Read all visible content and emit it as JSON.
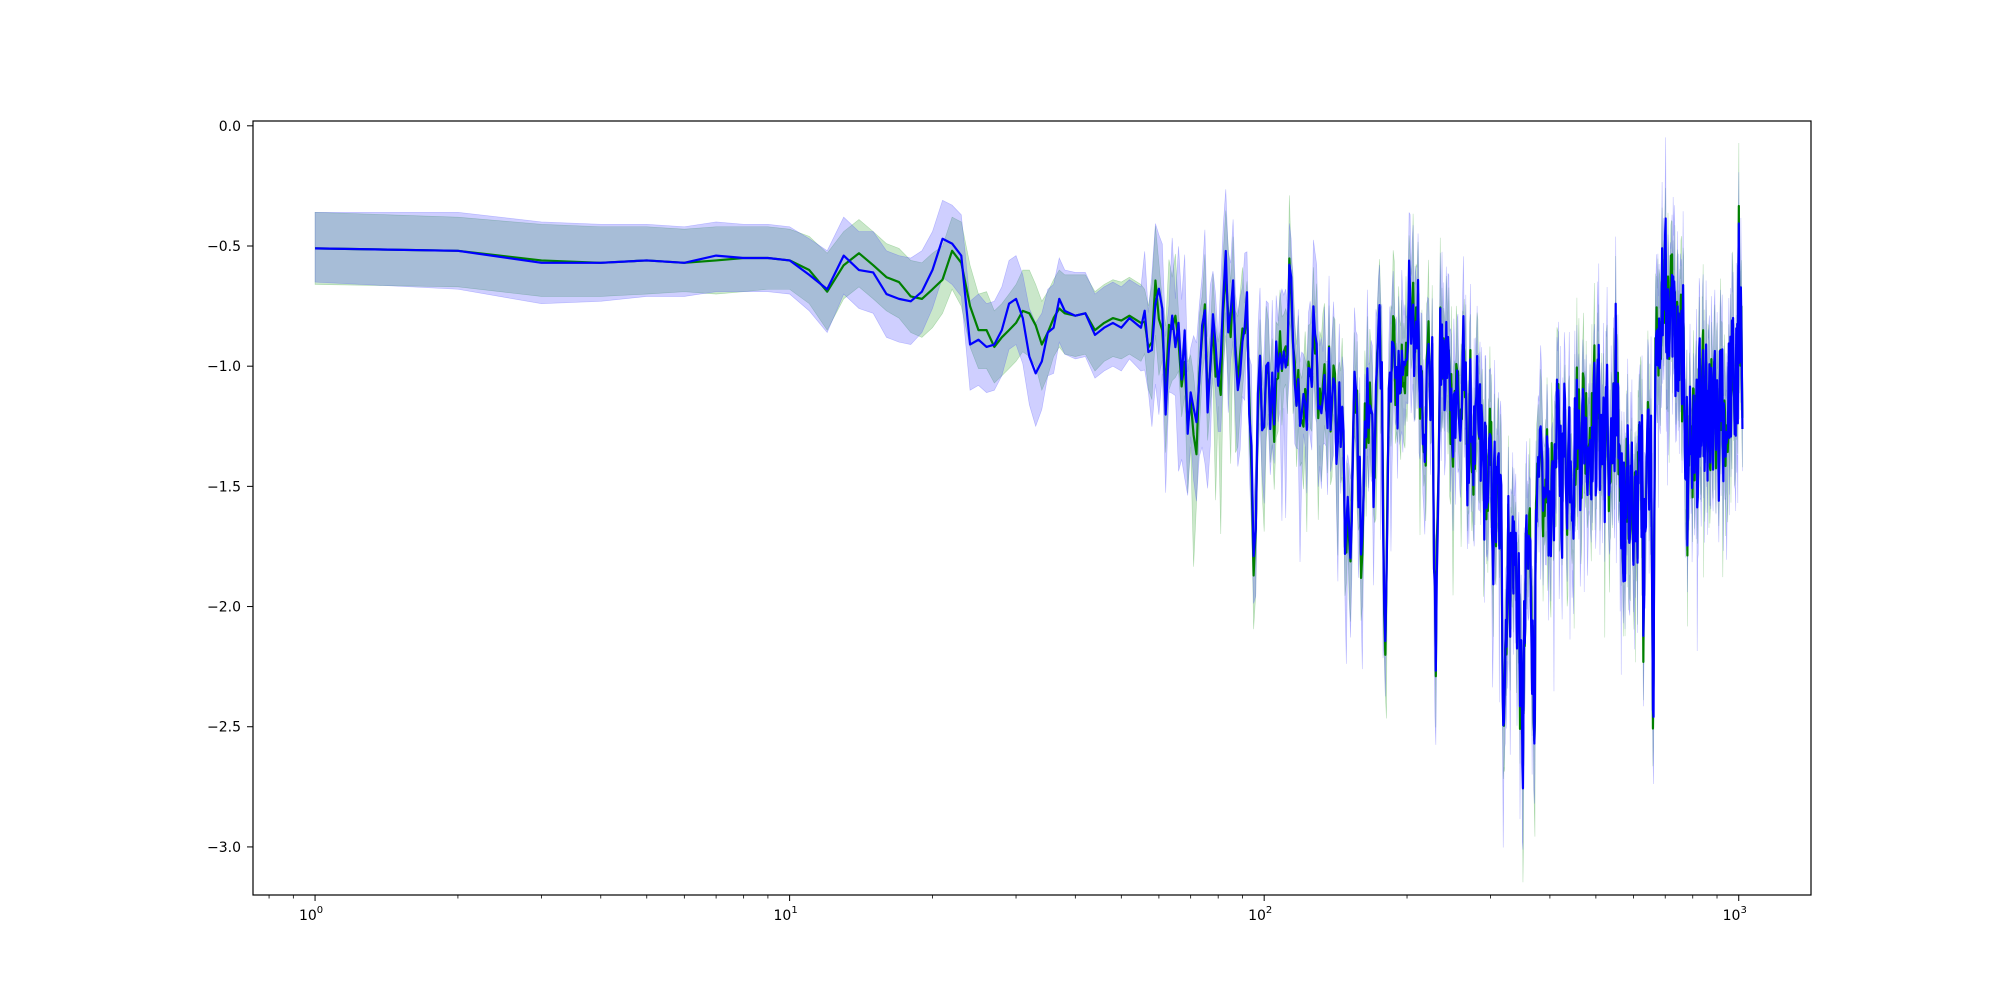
{
  "chart_data": {
    "type": "line",
    "title": "",
    "xlabel": "",
    "ylabel": "",
    "x_scale": "log",
    "xlim": [
      0.74,
      1420
    ],
    "ylim": [
      -3.2,
      0.02
    ],
    "grid": false,
    "legend": "none",
    "x_ticks": [
      {
        "value": 1,
        "base": "10",
        "exp": "0"
      },
      {
        "value": 10,
        "base": "10",
        "exp": "1"
      },
      {
        "value": 100,
        "base": "10",
        "exp": "2"
      },
      {
        "value": 1000,
        "base": "10",
        "exp": "3"
      }
    ],
    "y_ticks": [
      {
        "value": 0.0,
        "label": "0.0"
      },
      {
        "value": -0.5,
        "label": "−0.5"
      },
      {
        "value": -1.0,
        "label": "−1.0"
      },
      {
        "value": -1.5,
        "label": "−1.5"
      },
      {
        "value": -2.0,
        "label": "−2.0"
      },
      {
        "value": -2.5,
        "label": "−2.5"
      },
      {
        "value": -3.0,
        "label": "−3.0"
      }
    ],
    "series": [
      {
        "color": "#008000",
        "band_color": "#2ca02c",
        "band_opacity": 0.25,
        "points": [
          [
            1,
            -0.51,
            -0.36,
            -0.66
          ],
          [
            2,
            -0.52,
            -0.38,
            -0.67
          ],
          [
            3,
            -0.56,
            -0.41,
            -0.71
          ],
          [
            4,
            -0.57,
            -0.42,
            -0.71
          ],
          [
            5,
            -0.56,
            -0.42,
            -0.7
          ],
          [
            6,
            -0.57,
            -0.43,
            -0.69
          ],
          [
            7,
            -0.56,
            -0.42,
            -0.7
          ],
          [
            8,
            -0.55,
            -0.42,
            -0.69
          ],
          [
            9,
            -0.55,
            -0.42,
            -0.68
          ],
          [
            10,
            -0.56,
            -0.43,
            -0.68
          ],
          [
            11,
            -0.6,
            -0.46,
            -0.74
          ],
          [
            12,
            -0.69,
            -0.53,
            -0.85
          ],
          [
            13,
            -0.58,
            -0.44,
            -0.72
          ],
          [
            14,
            -0.53,
            -0.39,
            -0.67
          ],
          [
            15,
            -0.58,
            -0.44,
            -0.72
          ],
          [
            16,
            -0.63,
            -0.49,
            -0.77
          ],
          [
            17,
            -0.65,
            -0.51,
            -0.8
          ],
          [
            18,
            -0.71,
            -0.56,
            -0.86
          ],
          [
            19,
            -0.72,
            -0.57,
            -0.88
          ],
          [
            20,
            -0.68,
            -0.53,
            -0.84
          ],
          [
            21,
            -0.64,
            -0.5,
            -0.78
          ],
          [
            22,
            -0.52,
            -0.38,
            -0.68
          ],
          [
            23,
            -0.57,
            -0.4,
            -0.75
          ],
          [
            24,
            -0.75,
            -0.58,
            -0.92
          ],
          [
            25,
            -0.85,
            -0.7,
            -1.01
          ],
          [
            26,
            -0.85,
            -0.69,
            -1.01
          ],
          [
            27,
            -0.92,
            -0.77,
            -1.07
          ],
          [
            28,
            -0.88,
            -0.74,
            -1.04
          ],
          [
            29,
            -0.85,
            -0.7,
            -1.01
          ],
          [
            30,
            -0.82,
            -0.66,
            -0.98
          ],
          [
            31,
            -0.77,
            -0.6,
            -0.94
          ],
          [
            32,
            -0.78,
            -0.6,
            -0.96
          ],
          [
            33,
            -0.83,
            -0.66,
            -1.0
          ],
          [
            34,
            -0.91,
            -0.73,
            -1.1
          ],
          [
            35,
            -0.86,
            -0.69,
            -1.04
          ],
          [
            36,
            -0.8,
            -0.64,
            -0.96
          ],
          [
            37,
            -0.76,
            -0.6,
            -0.92
          ],
          [
            38,
            -0.78,
            -0.62,
            -0.95
          ],
          [
            40,
            -0.79,
            -0.62,
            -0.96
          ],
          [
            42,
            -0.78,
            -0.62,
            -0.95
          ],
          [
            44,
            -0.85,
            -0.69,
            -1.02
          ],
          [
            46,
            -0.82,
            -0.66,
            -0.98
          ],
          [
            48,
            -0.8,
            -0.64,
            -0.96
          ],
          [
            50,
            -0.81,
            -0.65,
            -0.97
          ],
          [
            52,
            -0.79,
            -0.63,
            -0.95
          ],
          [
            55,
            -0.82,
            -0.66,
            -0.98
          ]
        ]
      },
      {
        "color": "#0000ff",
        "band_color": "#4040ff",
        "band_opacity": 0.25,
        "points": [
          [
            1,
            -0.51,
            -0.36,
            -0.65
          ],
          [
            2,
            -0.52,
            -0.36,
            -0.68
          ],
          [
            3,
            -0.57,
            -0.4,
            -0.74
          ],
          [
            4,
            -0.57,
            -0.41,
            -0.73
          ],
          [
            5,
            -0.56,
            -0.41,
            -0.71
          ],
          [
            6,
            -0.57,
            -0.42,
            -0.71
          ],
          [
            7,
            -0.54,
            -0.4,
            -0.69
          ],
          [
            8,
            -0.55,
            -0.41,
            -0.69
          ],
          [
            9,
            -0.55,
            -0.41,
            -0.69
          ],
          [
            10,
            -0.56,
            -0.42,
            -0.7
          ],
          [
            11,
            -0.62,
            -0.47,
            -0.77
          ],
          [
            12,
            -0.68,
            -0.52,
            -0.86
          ],
          [
            13,
            -0.54,
            -0.38,
            -0.7
          ],
          [
            14,
            -0.6,
            -0.44,
            -0.76
          ],
          [
            15,
            -0.61,
            -0.44,
            -0.78
          ],
          [
            16,
            -0.7,
            -0.52,
            -0.88
          ],
          [
            17,
            -0.72,
            -0.54,
            -0.9
          ],
          [
            18,
            -0.73,
            -0.55,
            -0.91
          ],
          [
            19,
            -0.69,
            -0.52,
            -0.86
          ],
          [
            20,
            -0.6,
            -0.44,
            -0.76
          ],
          [
            21,
            -0.47,
            -0.31,
            -0.63
          ],
          [
            22,
            -0.49,
            -0.33,
            -0.66
          ],
          [
            23,
            -0.54,
            -0.37,
            -0.71
          ],
          [
            24,
            -0.91,
            -0.73,
            -1.1
          ],
          [
            25,
            -0.89,
            -0.7,
            -1.08
          ],
          [
            26,
            -0.92,
            -0.74,
            -1.11
          ],
          [
            27,
            -0.91,
            -0.73,
            -1.1
          ],
          [
            28,
            -0.85,
            -0.67,
            -1.04
          ],
          [
            29,
            -0.74,
            -0.56,
            -0.93
          ],
          [
            30,
            -0.72,
            -0.54,
            -0.91
          ],
          [
            31,
            -0.8,
            -0.62,
            -0.99
          ],
          [
            32,
            -0.96,
            -0.76,
            -1.16
          ],
          [
            33,
            -1.03,
            -0.82,
            -1.25
          ],
          [
            34,
            -0.98,
            -0.78,
            -1.18
          ],
          [
            35,
            -0.86,
            -0.68,
            -1.04
          ],
          [
            36,
            -0.84,
            -0.66,
            -1.03
          ],
          [
            37,
            -0.72,
            -0.55,
            -0.9
          ],
          [
            38,
            -0.77,
            -0.6,
            -0.95
          ],
          [
            40,
            -0.79,
            -0.61,
            -0.97
          ],
          [
            42,
            -0.78,
            -0.61,
            -0.96
          ],
          [
            44,
            -0.87,
            -0.7,
            -1.05
          ],
          [
            46,
            -0.84,
            -0.67,
            -1.02
          ],
          [
            48,
            -0.82,
            -0.65,
            -1.0
          ],
          [
            50,
            -0.84,
            -0.67,
            -1.02
          ],
          [
            52,
            -0.8,
            -0.64,
            -0.97
          ],
          [
            55,
            -0.84,
            -0.67,
            -1.02
          ]
        ]
      }
    ],
    "noisy_region": {
      "x_range": [
        56,
        1020
      ],
      "points": 650,
      "envelope": [
        [
          56,
          -0.85
        ],
        [
          60,
          -1.0
        ],
        [
          70,
          -1.15
        ],
        [
          80,
          -0.95
        ],
        [
          90,
          -0.8
        ],
        [
          100,
          -1.25
        ],
        [
          110,
          -0.85
        ],
        [
          120,
          -0.95
        ],
        [
          150,
          -1.3
        ],
        [
          180,
          -1.15
        ],
        [
          200,
          -0.95
        ],
        [
          250,
          -1.05
        ],
        [
          300,
          -1.55
        ],
        [
          350,
          -1.9
        ],
        [
          400,
          -1.5
        ],
        [
          450,
          -1.25
        ],
        [
          500,
          -1.2
        ],
        [
          550,
          -1.45
        ],
        [
          600,
          -1.55
        ],
        [
          650,
          -1.3
        ],
        [
          700,
          -0.7
        ],
        [
          750,
          -1.0
        ],
        [
          800,
          -1.3
        ],
        [
          900,
          -1.3
        ],
        [
          1000,
          -1.05
        ],
        [
          1020,
          -1.1
        ]
      ],
      "dips": [
        [
          95,
          -1.75,
          2.0
        ],
        [
          150,
          -1.95,
          3.0
        ],
        [
          160,
          -1.7,
          2.0
        ],
        [
          180,
          -1.9,
          2.5
        ],
        [
          230,
          -2.2,
          2.5
        ],
        [
          320,
          -2.2,
          4.0
        ],
        [
          350,
          -2.55,
          5.0
        ],
        [
          370,
          -2.35,
          3.0
        ],
        [
          600,
          -2.1,
          2.5
        ],
        [
          660,
          -2.3,
          3.0
        ],
        [
          630,
          -1.9,
          2.0
        ],
        [
          780,
          -1.85,
          2.0
        ]
      ],
      "peaks": [
        [
          90,
          -0.7,
          1.5
        ],
        [
          115,
          -0.7,
          2.0
        ],
        [
          200,
          -0.7,
          2.0
        ],
        [
          210,
          -0.65,
          1.5
        ],
        [
          550,
          -0.9,
          1.5
        ],
        [
          700,
          -0.45,
          3.0
        ],
        [
          730,
          -0.55,
          2.0
        ],
        [
          1000,
          -0.55,
          2.0
        ]
      ]
    }
  }
}
